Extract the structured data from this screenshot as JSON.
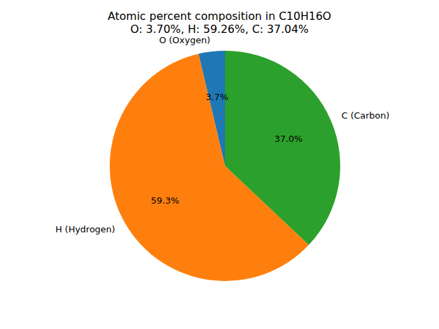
{
  "chart_data": {
    "type": "pie",
    "title": "Atomic percent composition in C10H16O",
    "subtitle": "O: 3.70%, H: 59.26%, C: 37.04%",
    "categories": [
      "O (Oxygen)",
      "H (Hydrogen)",
      "C (Carbon)"
    ],
    "values": [
      3.7,
      59.26,
      37.04
    ],
    "value_labels": [
      "3.7%",
      "59.3%",
      "37.0%"
    ],
    "colors": [
      "#1f77b4",
      "#ff7f0e",
      "#2ca02c"
    ],
    "data_labels": true
  }
}
